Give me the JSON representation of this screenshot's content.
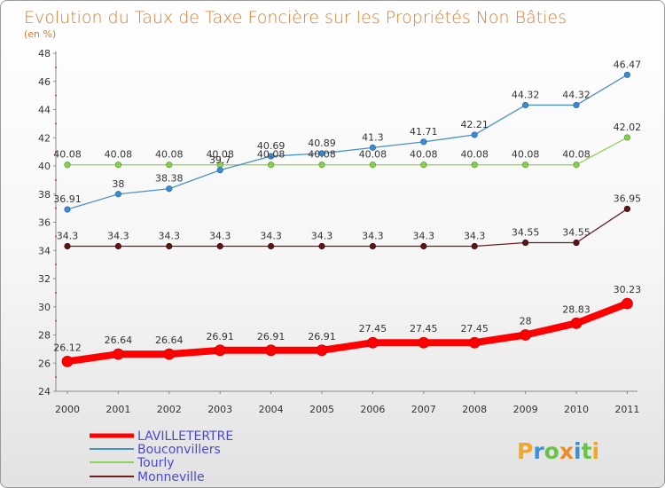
{
  "chart_data": {
    "type": "line",
    "title": "Evolution du Taux de Taxe Foncière sur les Propriétés Non Bâties",
    "subtitle": "(en %)",
    "xlabel": "",
    "ylabel": "",
    "categories": [
      "2000",
      "2001",
      "2002",
      "2003",
      "2004",
      "2005",
      "2006",
      "2007",
      "2008",
      "2009",
      "2010",
      "2011"
    ],
    "ylim": [
      24,
      48
    ],
    "yticks": [
      24,
      26,
      28,
      30,
      32,
      34,
      36,
      38,
      40,
      42,
      44,
      46,
      48
    ],
    "grid": "none",
    "legend_position": "bottom-left",
    "series": [
      {
        "name": "LAVILLETERTRE",
        "color": "#ff0000",
        "values": [
          26.12,
          26.64,
          26.64,
          26.91,
          26.91,
          26.91,
          27.45,
          27.45,
          27.45,
          28,
          28.83,
          30.23
        ],
        "labels": [
          "26.12",
          "26.64",
          "26.64",
          "26.91",
          "26.91",
          "26.91",
          "27.45",
          "27.45",
          "27.45",
          "28",
          "28.83",
          "30.23"
        ]
      },
      {
        "name": "Bouconvillers",
        "color": "#4a90c8",
        "values": [
          36.91,
          38,
          38.38,
          39.7,
          40.69,
          40.89,
          41.3,
          41.71,
          42.21,
          44.32,
          44.32,
          46.47
        ],
        "labels": [
          "36.91",
          "38",
          "38.38",
          "39.7",
          "40.69",
          "40.89",
          "41.3",
          "41.71",
          "42.21",
          "44.32",
          "44.32",
          "46.47"
        ]
      },
      {
        "name": "Tourly",
        "color": "#8ed25a",
        "values": [
          40.08,
          40.08,
          40.08,
          40.08,
          40.08,
          40.08,
          40.08,
          40.08,
          40.08,
          40.08,
          40.08,
          42.02
        ],
        "labels": [
          "40.08",
          "40.08",
          "40.08",
          "40.08",
          "40.08",
          "40.08",
          "40.08",
          "40.08",
          "40.08",
          "40.08",
          "40.08",
          "42.02"
        ]
      },
      {
        "name": "Monneville",
        "color": "#6b1f1f",
        "values": [
          34.3,
          34.3,
          34.3,
          34.3,
          34.3,
          34.3,
          34.3,
          34.3,
          34.3,
          34.55,
          34.55,
          36.95
        ],
        "labels": [
          "34.3",
          "34.3",
          "34.3",
          "34.3",
          "34.3",
          "34.3",
          "34.3",
          "34.3",
          "34.3",
          "34.55",
          "34.55",
          "36.95"
        ]
      }
    ]
  },
  "logo": {
    "text": "Proxiti",
    "letters": [
      "P",
      "r",
      "o",
      "x",
      "i",
      "t",
      "i"
    ],
    "colors": [
      "#f5a623",
      "#3b8fd6",
      "#6cc24a",
      "#f08a24",
      "#3b8fd6",
      "#6cc24a",
      "#f5a623"
    ]
  }
}
